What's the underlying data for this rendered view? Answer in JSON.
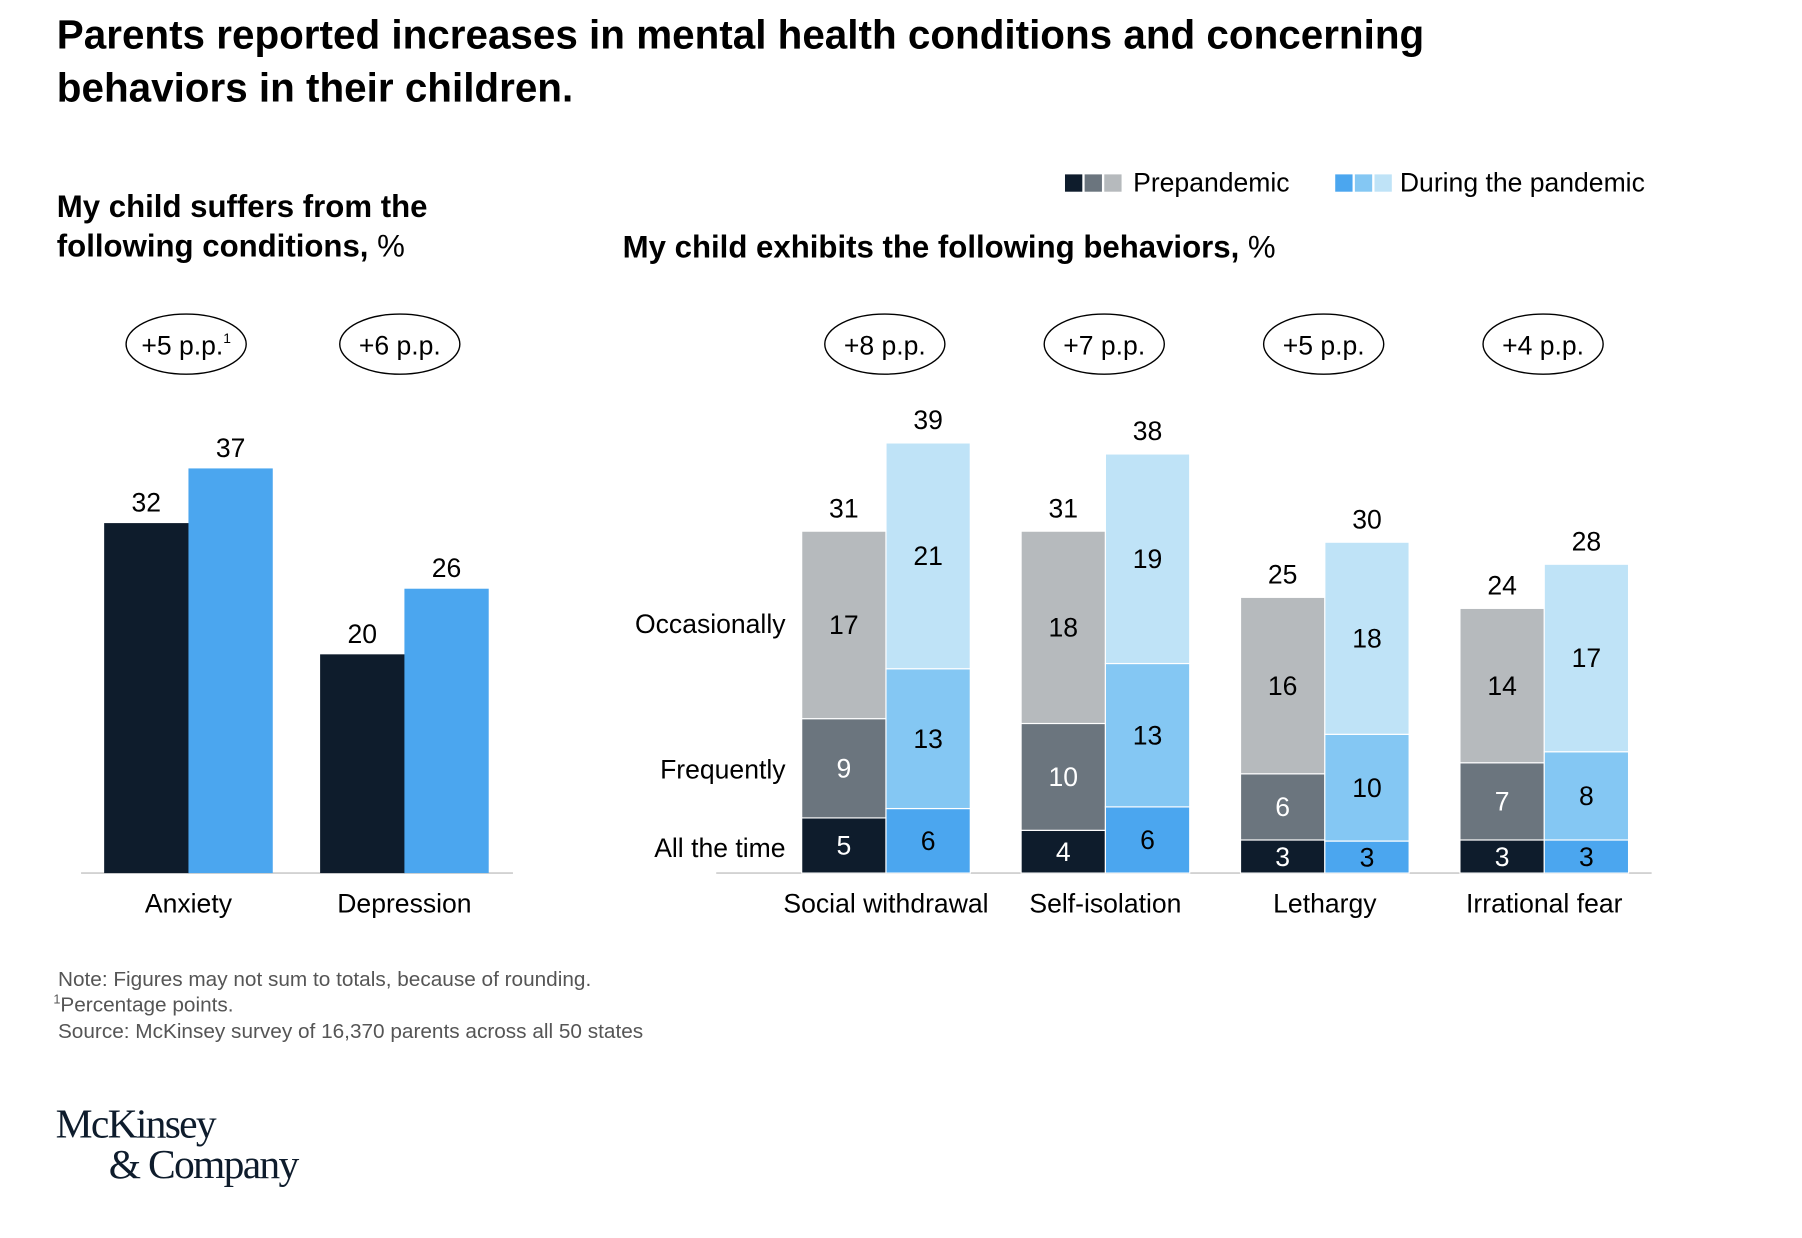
{
  "title_lines": [
    "Parents reported increases in mental health conditions and concerning",
    "behaviors in their children."
  ],
  "legend": [
    {
      "label": "Prepandemic",
      "colors": [
        "#0e1c2c",
        "#6b757e",
        "#b6babd"
      ]
    },
    {
      "label": "During the pandemic",
      "colors": [
        "#4ba6ef",
        "#84c7f3",
        "#bfe3f7"
      ]
    }
  ],
  "chart_data": [
    {
      "type": "bar",
      "title_lines": [
        "My child suffers from the",
        "following conditions,"
      ],
      "unit": "%",
      "categories": [
        "Anxiety",
        "Depression"
      ],
      "series": [
        {
          "name": "Prepandemic",
          "color": "#0e1c2c",
          "values": [
            32,
            20
          ]
        },
        {
          "name": "During the pandemic",
          "color": "#4ba6ef",
          "values": [
            37,
            26
          ]
        }
      ],
      "changes": [
        "+5 p.p.",
        "+6 p.p."
      ],
      "change_footnote": [
        "1",
        ""
      ]
    },
    {
      "type": "bar",
      "stacked": true,
      "title": "My child exhibits the following behaviors,",
      "unit": "%",
      "categories": [
        "Social withdrawal",
        "Self-isolation",
        "Lethargy",
        "Irrational fear"
      ],
      "stack_labels": [
        "All the time",
        "Frequently",
        "Occasionally"
      ],
      "series": [
        {
          "name": "Prepandemic",
          "colors": [
            "#0e1c2c",
            "#6b757e",
            "#b6babd"
          ],
          "segments": [
            [
              5,
              9,
              17
            ],
            [
              4,
              10,
              18
            ],
            [
              3,
              6,
              16
            ],
            [
              3,
              7,
              14
            ]
          ],
          "totals": [
            31,
            31,
            25,
            24
          ]
        },
        {
          "name": "During the pandemic",
          "colors": [
            "#4ba6ef",
            "#84c7f3",
            "#bfe3f7"
          ],
          "segments": [
            [
              6,
              13,
              21
            ],
            [
              6,
              13,
              19
            ],
            [
              3,
              10,
              18
            ],
            [
              3,
              8,
              17
            ]
          ],
          "totals": [
            39,
            38,
            30,
            28
          ]
        }
      ],
      "changes": [
        "+8 p.p.",
        "+7 p.p.",
        "+5 p.p.",
        "+4 p.p."
      ]
    }
  ],
  "notes": [
    "Note: Figures may not sum to totals, because of rounding.",
    "Percentage points.",
    "Source: McKinsey survey of 16,370 parents across all 50 states"
  ],
  "note_footnote_mark": "1",
  "logo": [
    "McKinsey",
    "& Company"
  ]
}
